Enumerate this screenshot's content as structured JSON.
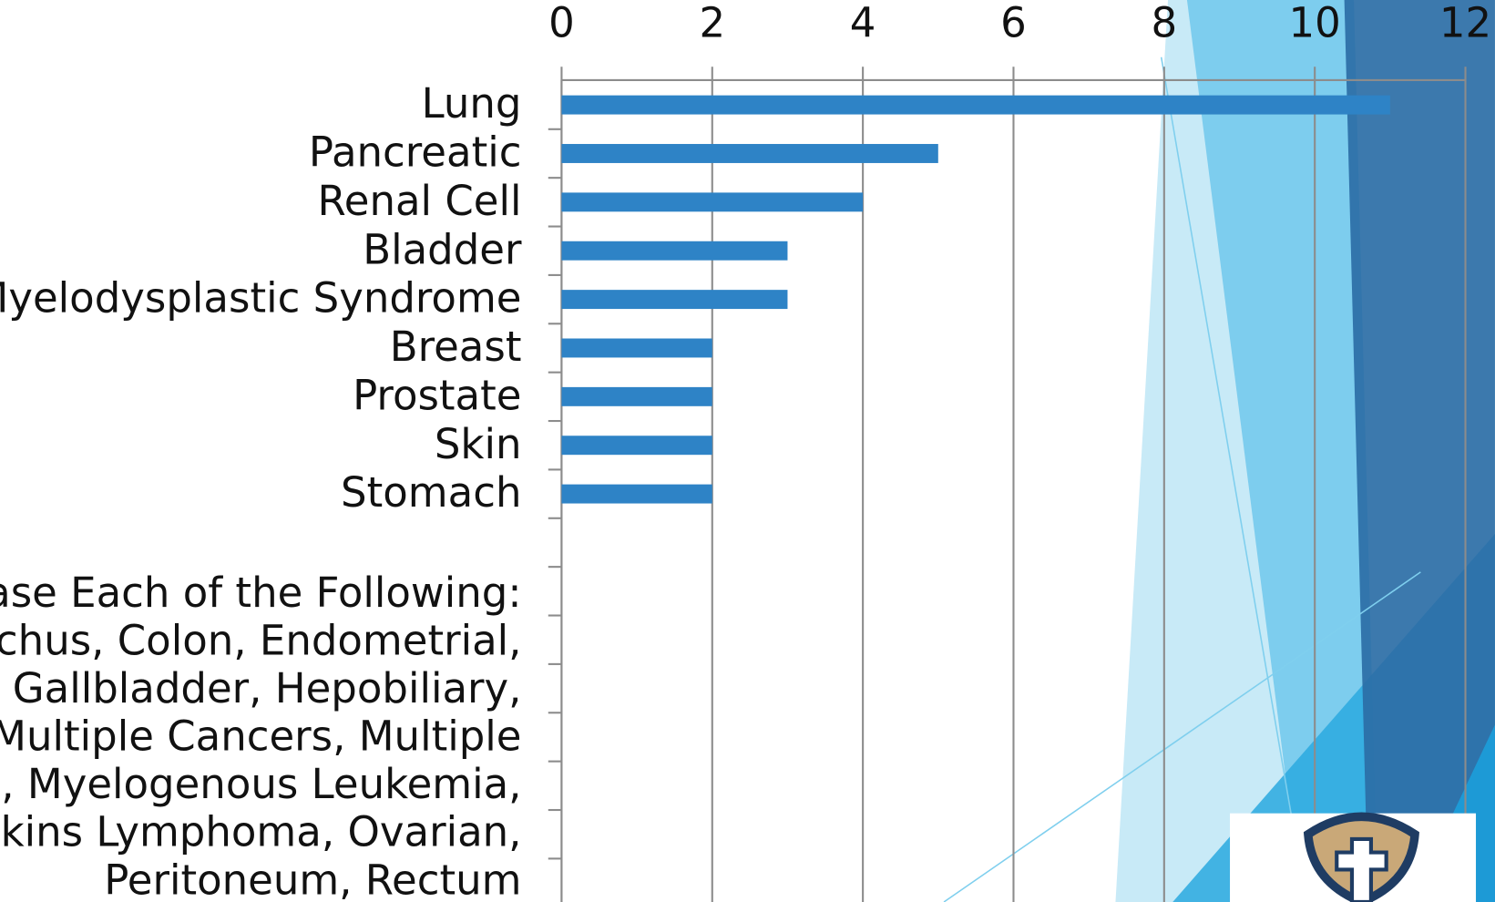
{
  "chart_data": {
    "type": "bar",
    "orientation": "horizontal",
    "categories": [
      "Lung",
      "Pancreatic",
      "Renal Cell",
      "Bladder",
      "Myelodysplastic Syndrome",
      "Breast",
      "Prostate",
      "Skin",
      "Stomach"
    ],
    "values": [
      11,
      5,
      4,
      3,
      3,
      2,
      2,
      2,
      2
    ],
    "color": "#2e83c6",
    "xlim": [
      0,
      12
    ],
    "xticks": [
      0,
      2,
      4,
      6,
      8,
      10,
      12
    ],
    "grid": true,
    "annotation_lines": [
      "Case Each of the Following:",
      "nchus, Colon, Endometrial,",
      ", Gallbladder, Hepobiliary,",
      "Multiple Cancers, Multiple",
      "na, Myelogenous Leukemia,",
      "lgkins Lymphoma, Ovarian,",
      "Peritoneum, Rectum"
    ]
  }
}
